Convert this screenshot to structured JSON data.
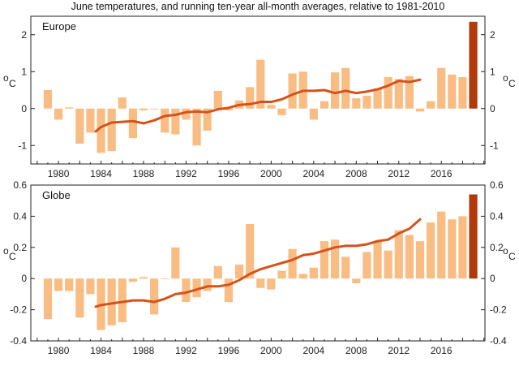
{
  "chart_data": {
    "title": "June temperatures, and running ten-year all-month averages, relative to 1981-2010",
    "type": "bar",
    "colors": {
      "bar": "#f9bd84",
      "latest_bar": "#b03a0c",
      "line": "#d5521b"
    },
    "x_tick_labels": [
      "1980",
      "1984",
      "1988",
      "1992",
      "1996",
      "2000",
      "2004",
      "2008",
      "2012",
      "2016"
    ],
    "unit_superscript": "o",
    "unit_letter": "C",
    "panels": [
      {
        "name": "Europe",
        "ylim": [
          -1.5,
          2.5
        ],
        "y_ticks": [
          -1,
          0,
          1,
          2
        ],
        "y_tick_labels": [
          "-1",
          "0",
          "1",
          "2"
        ],
        "years": [
          1979,
          1980,
          1981,
          1982,
          1983,
          1984,
          1985,
          1986,
          1987,
          1988,
          1989,
          1990,
          1991,
          1992,
          1993,
          1994,
          1995,
          1996,
          1997,
          1998,
          1999,
          2000,
          2001,
          2002,
          2003,
          2004,
          2005,
          2006,
          2007,
          2008,
          2009,
          2010,
          2011,
          2012,
          2013,
          2014,
          2015,
          2016,
          2017,
          2018,
          2019
        ],
        "bar_values": [
          0.5,
          -0.3,
          0.03,
          -0.95,
          -0.65,
          -1.2,
          -1.15,
          0.3,
          -0.8,
          -0.05,
          -0.02,
          -0.65,
          -0.7,
          -0.3,
          -1.0,
          -0.6,
          0.48,
          -0.05,
          0.22,
          0.58,
          1.32,
          0.1,
          -0.18,
          0.95,
          1.0,
          -0.3,
          0.2,
          0.98,
          1.1,
          0.28,
          0.35,
          0.55,
          0.85,
          0.8,
          0.88,
          -0.08,
          0.2,
          1.1,
          0.92,
          0.85,
          2.35
        ],
        "running_mean": {
          "years": [
            1983.5,
            1984,
            1985,
            1986,
            1987,
            1988,
            1989,
            1990,
            1991,
            1992,
            1993,
            1994,
            1995,
            1996,
            1997,
            1998,
            1999,
            2000,
            2001,
            2002,
            2003,
            2004,
            2005,
            2006,
            2007,
            2008,
            2009,
            2010,
            2011,
            2012,
            2013,
            2014
          ],
          "values": [
            -0.62,
            -0.5,
            -0.38,
            -0.36,
            -0.34,
            -0.4,
            -0.32,
            -0.2,
            -0.17,
            -0.1,
            -0.08,
            -0.1,
            -0.02,
            0.02,
            0.1,
            0.12,
            0.18,
            0.18,
            0.25,
            0.38,
            0.48,
            0.48,
            0.5,
            0.42,
            0.48,
            0.42,
            0.46,
            0.52,
            0.62,
            0.75,
            0.72,
            0.78
          ]
        }
      },
      {
        "name": "Globe",
        "ylim": [
          -0.4,
          0.6
        ],
        "y_ticks": [
          -0.4,
          -0.2,
          0,
          0.2,
          0.4,
          0.6
        ],
        "y_tick_labels": [
          "-0.4",
          "-0.2",
          "0",
          "0.2",
          "0.4",
          "0.6"
        ],
        "years": [
          1979,
          1980,
          1981,
          1982,
          1983,
          1984,
          1985,
          1986,
          1987,
          1988,
          1989,
          1990,
          1991,
          1992,
          1993,
          1994,
          1995,
          1996,
          1997,
          1998,
          1999,
          2000,
          2001,
          2002,
          2003,
          2004,
          2005,
          2006,
          2007,
          2008,
          2009,
          2010,
          2011,
          2012,
          2013,
          2014,
          2015,
          2016,
          2017,
          2018,
          2019
        ],
        "bar_values": [
          -0.26,
          -0.08,
          -0.08,
          -0.25,
          -0.1,
          -0.33,
          -0.3,
          -0.28,
          -0.02,
          0.01,
          -0.23,
          0.0,
          0.2,
          -0.15,
          -0.12,
          -0.08,
          0.08,
          -0.15,
          0.09,
          0.35,
          -0.06,
          -0.07,
          0.05,
          0.19,
          0.03,
          0.07,
          0.24,
          0.25,
          0.14,
          -0.03,
          0.17,
          0.24,
          0.18,
          0.31,
          0.28,
          0.24,
          0.36,
          0.43,
          0.38,
          0.4,
          0.54
        ],
        "running_mean": {
          "years": [
            1983.5,
            1984,
            1985,
            1986,
            1987,
            1988,
            1989,
            1990,
            1991,
            1992,
            1993,
            1994,
            1995,
            1996,
            1997,
            1998,
            1999,
            2000,
            2001,
            2002,
            2003,
            2004,
            2005,
            2006,
            2007,
            2008,
            2009,
            2010,
            2011,
            2012,
            2013,
            2014
          ],
          "values": [
            -0.18,
            -0.17,
            -0.16,
            -0.15,
            -0.14,
            -0.14,
            -0.15,
            -0.13,
            -0.1,
            -0.09,
            -0.07,
            -0.05,
            -0.05,
            -0.04,
            -0.01,
            0.03,
            0.06,
            0.08,
            0.1,
            0.12,
            0.15,
            0.16,
            0.18,
            0.2,
            0.21,
            0.21,
            0.22,
            0.24,
            0.25,
            0.29,
            0.32,
            0.38
          ]
        }
      }
    ]
  }
}
